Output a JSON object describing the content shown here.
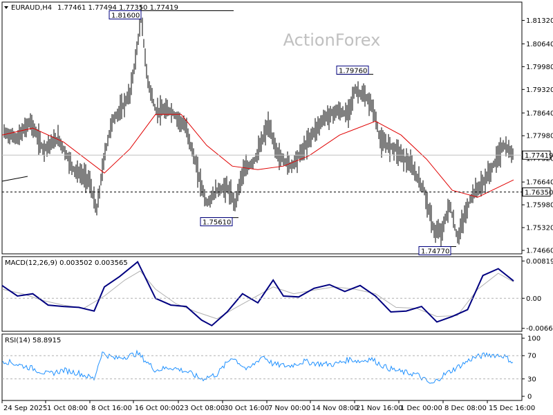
{
  "header": {
    "symbol_timeframe": "EURAUD,H4",
    "ohlc": "1.77461 1.77494 1.77350 1.77419",
    "watermark": "ActionForex"
  },
  "chart_data": [
    {
      "type": "bar",
      "title": "EURAUD,H4",
      "xlabel": "",
      "ylabel": "",
      "x_ticks": [
        "24 Sep 2025",
        "1 Oct 08:00",
        "8 Oct 16:00",
        "16 Oct 00:00",
        "23 Oct 08:00",
        "30 Oct 16:00",
        "7 Nov 00:00",
        "14 Nov 08:00",
        "21 Nov 16:00",
        "1 Dec 00:00",
        "8 Dec 08:00",
        "15 Dec 16:00"
      ],
      "y_ticks": [
        "1.81320",
        "1.80640",
        "1.79980",
        "1.79320",
        "1.78640",
        "1.77980",
        "1.77320",
        "1.76640",
        "1.75980",
        "1.75320",
        "1.74660"
      ],
      "ylim": [
        1.7456,
        1.8185
      ],
      "current_price_label": "1.77419",
      "current_price": 1.77419,
      "marked_level_label": "1.76350",
      "marked_level": 1.7635,
      "annotations": [
        {
          "label": "1.81600",
          "value": 1.816
        },
        {
          "label": "1.79760",
          "value": 1.7976
        },
        {
          "label": "1.75610",
          "value": 1.7561
        },
        {
          "label": "1.74770",
          "value": 1.7477
        }
      ],
      "price_path": [
        [
          0,
          1.781
        ],
        [
          0.03,
          1.779
        ],
        [
          0.055,
          1.784
        ],
        [
          0.08,
          1.776
        ],
        [
          0.11,
          1.779
        ],
        [
          0.14,
          1.77
        ],
        [
          0.17,
          1.767
        ],
        [
          0.185,
          1.758
        ],
        [
          0.2,
          1.774
        ],
        [
          0.215,
          1.784
        ],
        [
          0.235,
          1.788
        ],
        [
          0.25,
          1.792
        ],
        [
          0.262,
          1.803
        ],
        [
          0.272,
          1.815
        ],
        [
          0.283,
          1.797
        ],
        [
          0.3,
          1.787
        ],
        [
          0.33,
          1.787
        ],
        [
          0.36,
          1.782
        ],
        [
          0.385,
          1.768
        ],
        [
          0.4,
          1.76
        ],
        [
          0.42,
          1.764
        ],
        [
          0.44,
          1.765
        ],
        [
          0.455,
          1.76
        ],
        [
          0.47,
          1.769
        ],
        [
          0.495,
          1.773
        ],
        [
          0.52,
          1.783
        ],
        [
          0.54,
          1.774
        ],
        [
          0.565,
          1.771
        ],
        [
          0.59,
          1.776
        ],
        [
          0.605,
          1.78
        ],
        [
          0.63,
          1.785
        ],
        [
          0.655,
          1.787
        ],
        [
          0.675,
          1.786
        ],
        [
          0.69,
          1.793
        ],
        [
          0.71,
          1.791
        ],
        [
          0.725,
          1.788
        ],
        [
          0.74,
          1.778
        ],
        [
          0.77,
          1.776
        ],
        [
          0.8,
          1.771
        ],
        [
          0.825,
          1.764
        ],
        [
          0.845,
          1.752
        ],
        [
          0.86,
          1.752
        ],
        [
          0.875,
          1.76
        ],
        [
          0.89,
          1.75
        ],
        [
          0.905,
          1.757
        ],
        [
          0.92,
          1.763
        ],
        [
          0.94,
          1.766
        ],
        [
          0.96,
          1.771
        ],
        [
          0.98,
          1.777
        ],
        [
          1.0,
          1.774
        ]
      ],
      "ma_path": [
        [
          0,
          1.78
        ],
        [
          0.06,
          1.782
        ],
        [
          0.12,
          1.778
        ],
        [
          0.2,
          1.769
        ],
        [
          0.25,
          1.776
        ],
        [
          0.3,
          1.786
        ],
        [
          0.35,
          1.786
        ],
        [
          0.4,
          1.777
        ],
        [
          0.45,
          1.771
        ],
        [
          0.5,
          1.77
        ],
        [
          0.55,
          1.771
        ],
        [
          0.6,
          1.774
        ],
        [
          0.66,
          1.78
        ],
        [
          0.73,
          1.784
        ],
        [
          0.78,
          1.78
        ],
        [
          0.83,
          1.773
        ],
        [
          0.88,
          1.764
        ],
        [
          0.93,
          1.762
        ],
        [
          1.0,
          1.767
        ]
      ]
    },
    {
      "type": "line",
      "title": "MACD(12,26,9) 0.003502 0.003565",
      "y_ticks": [
        "0.008194",
        "0.00",
        "-0.006604"
      ],
      "ylim": [
        -0.0068,
        0.0087
      ],
      "series": [
        {
          "name": "MACD",
          "values": [
            [
              0,
              0.0028
            ],
            [
              0.03,
              0.0005
            ],
            [
              0.06,
              0.001
            ],
            [
              0.09,
              -0.0015
            ],
            [
              0.12,
              -0.0018
            ],
            [
              0.15,
              -0.002
            ],
            [
              0.18,
              -0.0028
            ],
            [
              0.2,
              0.0025
            ],
            [
              0.23,
              0.0048
            ],
            [
              0.265,
              0.008
            ],
            [
              0.3,
              0.0
            ],
            [
              0.33,
              -0.0015
            ],
            [
              0.36,
              -0.0018
            ],
            [
              0.39,
              -0.0048
            ],
            [
              0.41,
              -0.006
            ],
            [
              0.44,
              -0.003
            ],
            [
              0.47,
              0.001
            ],
            [
              0.5,
              -0.001
            ],
            [
              0.53,
              0.004
            ],
            [
              0.55,
              0.0005
            ],
            [
              0.58,
              0.0003
            ],
            [
              0.61,
              0.0022
            ],
            [
              0.64,
              0.003
            ],
            [
              0.67,
              0.0015
            ],
            [
              0.7,
              0.0028
            ],
            [
              0.73,
              0.0005
            ],
            [
              0.76,
              -0.003
            ],
            [
              0.79,
              -0.0028
            ],
            [
              0.82,
              -0.0018
            ],
            [
              0.85,
              -0.0052
            ],
            [
              0.88,
              -0.004
            ],
            [
              0.91,
              -0.0025
            ],
            [
              0.94,
              0.005
            ],
            [
              0.97,
              0.0065
            ],
            [
              1.0,
              0.0038
            ]
          ]
        },
        {
          "name": "Signal",
          "values": [
            [
              0,
              0.002
            ],
            [
              0.04,
              0.001
            ],
            [
              0.08,
              -0.0005
            ],
            [
              0.12,
              -0.0015
            ],
            [
              0.16,
              -0.0022
            ],
            [
              0.2,
              0.0005
            ],
            [
              0.24,
              0.004
            ],
            [
              0.27,
              0.006
            ],
            [
              0.3,
              0.002
            ],
            [
              0.34,
              -0.0012
            ],
            [
              0.38,
              -0.003
            ],
            [
              0.42,
              -0.0045
            ],
            [
              0.45,
              -0.0025
            ],
            [
              0.49,
              0.0
            ],
            [
              0.53,
              0.0025
            ],
            [
              0.57,
              0.001
            ],
            [
              0.61,
              0.0018
            ],
            [
              0.65,
              0.0025
            ],
            [
              0.69,
              0.002
            ],
            [
              0.73,
              0.001
            ],
            [
              0.77,
              -0.002
            ],
            [
              0.81,
              -0.0022
            ],
            [
              0.85,
              -0.004
            ],
            [
              0.89,
              -0.0038
            ],
            [
              0.93,
              0.002
            ],
            [
              0.97,
              0.0055
            ],
            [
              1.0,
              0.0036
            ]
          ]
        }
      ]
    },
    {
      "type": "line",
      "title": "RSI(14) 58.8915",
      "y_ticks": [
        "100",
        "70",
        "30",
        "0"
      ],
      "ylim": [
        0,
        100
      ],
      "levels": [
        70,
        30
      ],
      "series": [
        {
          "name": "RSI",
          "values": [
            [
              0,
              62
            ],
            [
              0.03,
              55
            ],
            [
              0.06,
              48
            ],
            [
              0.09,
              38
            ],
            [
              0.12,
              45
            ],
            [
              0.15,
              40
            ],
            [
              0.18,
              30
            ],
            [
              0.195,
              75
            ],
            [
              0.22,
              65
            ],
            [
              0.25,
              70
            ],
            [
              0.265,
              74
            ],
            [
              0.3,
              45
            ],
            [
              0.33,
              50
            ],
            [
              0.36,
              43
            ],
            [
              0.39,
              30
            ],
            [
              0.42,
              38
            ],
            [
              0.45,
              68
            ],
            [
              0.48,
              45
            ],
            [
              0.51,
              70
            ],
            [
              0.53,
              55
            ],
            [
              0.56,
              52
            ],
            [
              0.59,
              60
            ],
            [
              0.62,
              56
            ],
            [
              0.65,
              55
            ],
            [
              0.68,
              64
            ],
            [
              0.7,
              60
            ],
            [
              0.72,
              65
            ],
            [
              0.75,
              50
            ],
            [
              0.78,
              42
            ],
            [
              0.81,
              38
            ],
            [
              0.84,
              20
            ],
            [
              0.86,
              35
            ],
            [
              0.88,
              45
            ],
            [
              0.9,
              55
            ],
            [
              0.92,
              66
            ],
            [
              0.95,
              72
            ],
            [
              0.98,
              70
            ],
            [
              1.0,
              58
            ]
          ]
        }
      ]
    }
  ]
}
